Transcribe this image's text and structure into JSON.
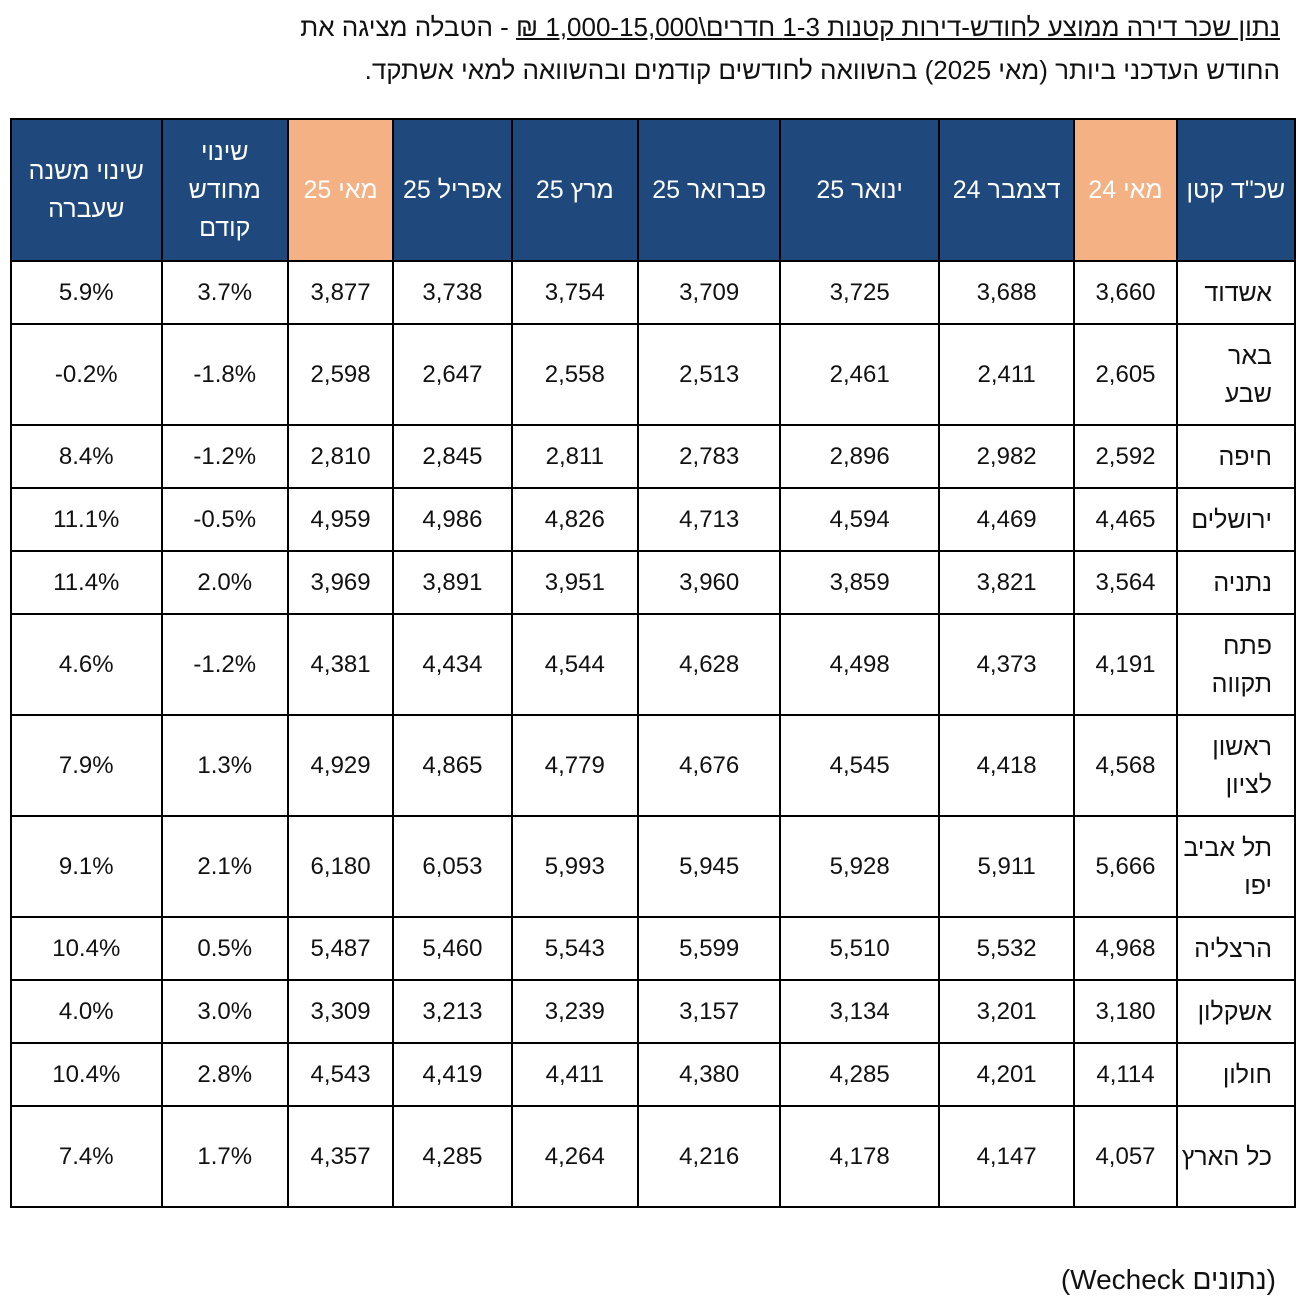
{
  "caption": {
    "part_underlined": "נתון שכר דירה ממוצע לחודש-דירות קטנות 1-3 חדרים\\1,000-15,000 ₪",
    "part_rest": " - הטבלה מציגה את החודש העדכני ביותר (מאי 2025) בהשוואה לחודשים קודמים ובהשוואה למאי אשתקד."
  },
  "table": {
    "headers": [
      "שכ\"ד קטן",
      "מאי 24",
      "דצמבר 24",
      "ינואר 25",
      "פברואר 25",
      "מרץ 25",
      "אפריל 25",
      "מאי 25",
      "שינוי מחודש קודם",
      "שינוי משנה שעברה"
    ],
    "rows": [
      {
        "city": "אשדוד",
        "values": [
          "3,660",
          "3,688",
          "3,725",
          "3,709",
          "3,754",
          "3,738",
          "3,877",
          "3.7%",
          "5.9%"
        ]
      },
      {
        "city": "באר שבע",
        "values": [
          "2,605",
          "2,411",
          "2,461",
          "2,513",
          "2,558",
          "2,647",
          "2,598",
          "1.8%-",
          "0.2%-"
        ]
      },
      {
        "city": "חיפה",
        "values": [
          "2,592",
          "2,982",
          "2,896",
          "2,783",
          "2,811",
          "2,845",
          "2,810",
          "1.2%-",
          "8.4%"
        ]
      },
      {
        "city": "ירושלים",
        "values": [
          "4,465",
          "4,469",
          "4,594",
          "4,713",
          "4,826",
          "4,986",
          "4,959",
          "0.5%-",
          "11.1%"
        ]
      },
      {
        "city": "נתניה",
        "values": [
          "3,564",
          "3,821",
          "3,859",
          "3,960",
          "3,951",
          "3,891",
          "3,969",
          "2.0%",
          "11.4%"
        ]
      },
      {
        "city": "פתח תקווה",
        "values": [
          "4,191",
          "4,373",
          "4,498",
          "4,628",
          "4,544",
          "4,434",
          "4,381",
          "1.2%-",
          "4.6%"
        ]
      },
      {
        "city": "ראשון לציון",
        "values": [
          "4,568",
          "4,418",
          "4,545",
          "4,676",
          "4,779",
          "4,865",
          "4,929",
          "1.3%",
          "7.9%"
        ]
      },
      {
        "city": "תל אביב יפו",
        "values": [
          "5,666",
          "5,911",
          "5,928",
          "5,945",
          "5,993",
          "6,053",
          "6,180",
          "2.1%",
          "9.1%"
        ]
      },
      {
        "city": "הרצליה",
        "values": [
          "4,968",
          "5,532",
          "5,510",
          "5,599",
          "5,543",
          "5,460",
          "5,487",
          "0.5%",
          "10.4%"
        ]
      },
      {
        "city": "אשקלון",
        "values": [
          "3,180",
          "3,201",
          "3,134",
          "3,157",
          "3,239",
          "3,213",
          "3,309",
          "3.0%",
          "4.0%"
        ]
      },
      {
        "city": "חולון",
        "values": [
          "4,114",
          "4,201",
          "4,285",
          "4,380",
          "4,411",
          "4,419",
          "4,543",
          "2.8%",
          "10.4%"
        ]
      },
      {
        "city": "כל הארץ",
        "values": [
          "4,057",
          "4,147",
          "4,178",
          "4,216",
          "4,264",
          "4,285",
          "4,357",
          "1.7%",
          "7.4%"
        ]
      }
    ]
  },
  "source": "(נתונים Wecheck)",
  "colors": {
    "header_bg": "#1f497d",
    "highlight_bg": "#f4b183",
    "header_text": "#ffffff"
  }
}
